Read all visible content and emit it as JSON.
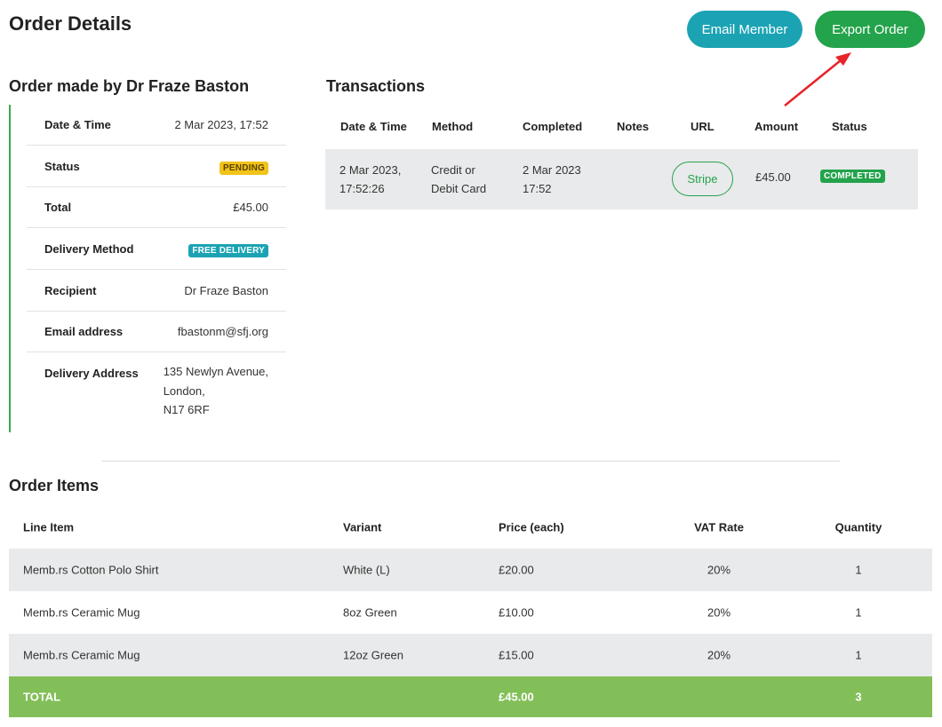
{
  "header": {
    "title": "Order Details",
    "email_button": "Email Member",
    "export_button": "Export Order"
  },
  "summary": {
    "title": "Order made by Dr Fraze Baston",
    "rows": [
      {
        "label": "Date & Time",
        "value": "2 Mar 2023, 17:52"
      },
      {
        "label": "Status",
        "value": "PENDING"
      },
      {
        "label": "Total",
        "value": "£45.00"
      },
      {
        "label": "Delivery Method",
        "value": "FREE DELIVERY"
      },
      {
        "label": "Recipient",
        "value": "Dr Fraze Baston"
      },
      {
        "label": "Email address",
        "value": "fbastonm@sfj.org"
      },
      {
        "label": "Delivery Address",
        "lines": [
          "135 Newlyn Avenue,",
          "London,",
          "N17 6RF"
        ]
      }
    ]
  },
  "transactions": {
    "title": "Transactions",
    "columns": [
      "Date & Time",
      "Method",
      "Completed",
      "Notes",
      "URL",
      "Amount",
      "Status"
    ],
    "rows": [
      {
        "date_lines": [
          "2 Mar 2023,",
          "17:52:26"
        ],
        "method_lines": [
          "Credit or",
          "Debit Card"
        ],
        "completed_lines": [
          "2 Mar 2023",
          "17:52"
        ],
        "notes": "",
        "url_label": "Stripe",
        "amount": "£45.00",
        "status": "COMPLETED"
      }
    ]
  },
  "items": {
    "title": "Order Items",
    "columns": [
      "Line Item",
      "Variant",
      "Price (each)",
      "VAT Rate",
      "Quantity"
    ],
    "rows": [
      {
        "item": "Memb.rs Cotton Polo Shirt",
        "variant": "White (L)",
        "price": "£20.00",
        "vat": "20%",
        "qty": "1"
      },
      {
        "item": "Memb.rs Ceramic Mug",
        "variant": "8oz Green",
        "price": "£10.00",
        "vat": "20%",
        "qty": "1"
      },
      {
        "item": "Memb.rs Ceramic Mug",
        "variant": "12oz Green",
        "price": "£15.00",
        "vat": "20%",
        "qty": "1"
      }
    ],
    "total": {
      "label": "TOTAL",
      "price": "£45.00",
      "qty": "3"
    }
  },
  "colors": {
    "email_button": "#1ba3b4",
    "export_button": "#23a34b",
    "pending_badge": "#f2c318",
    "completed_badge": "#23a34b",
    "total_row": "#82bf58",
    "annotation_arrow": "#e8232a"
  }
}
